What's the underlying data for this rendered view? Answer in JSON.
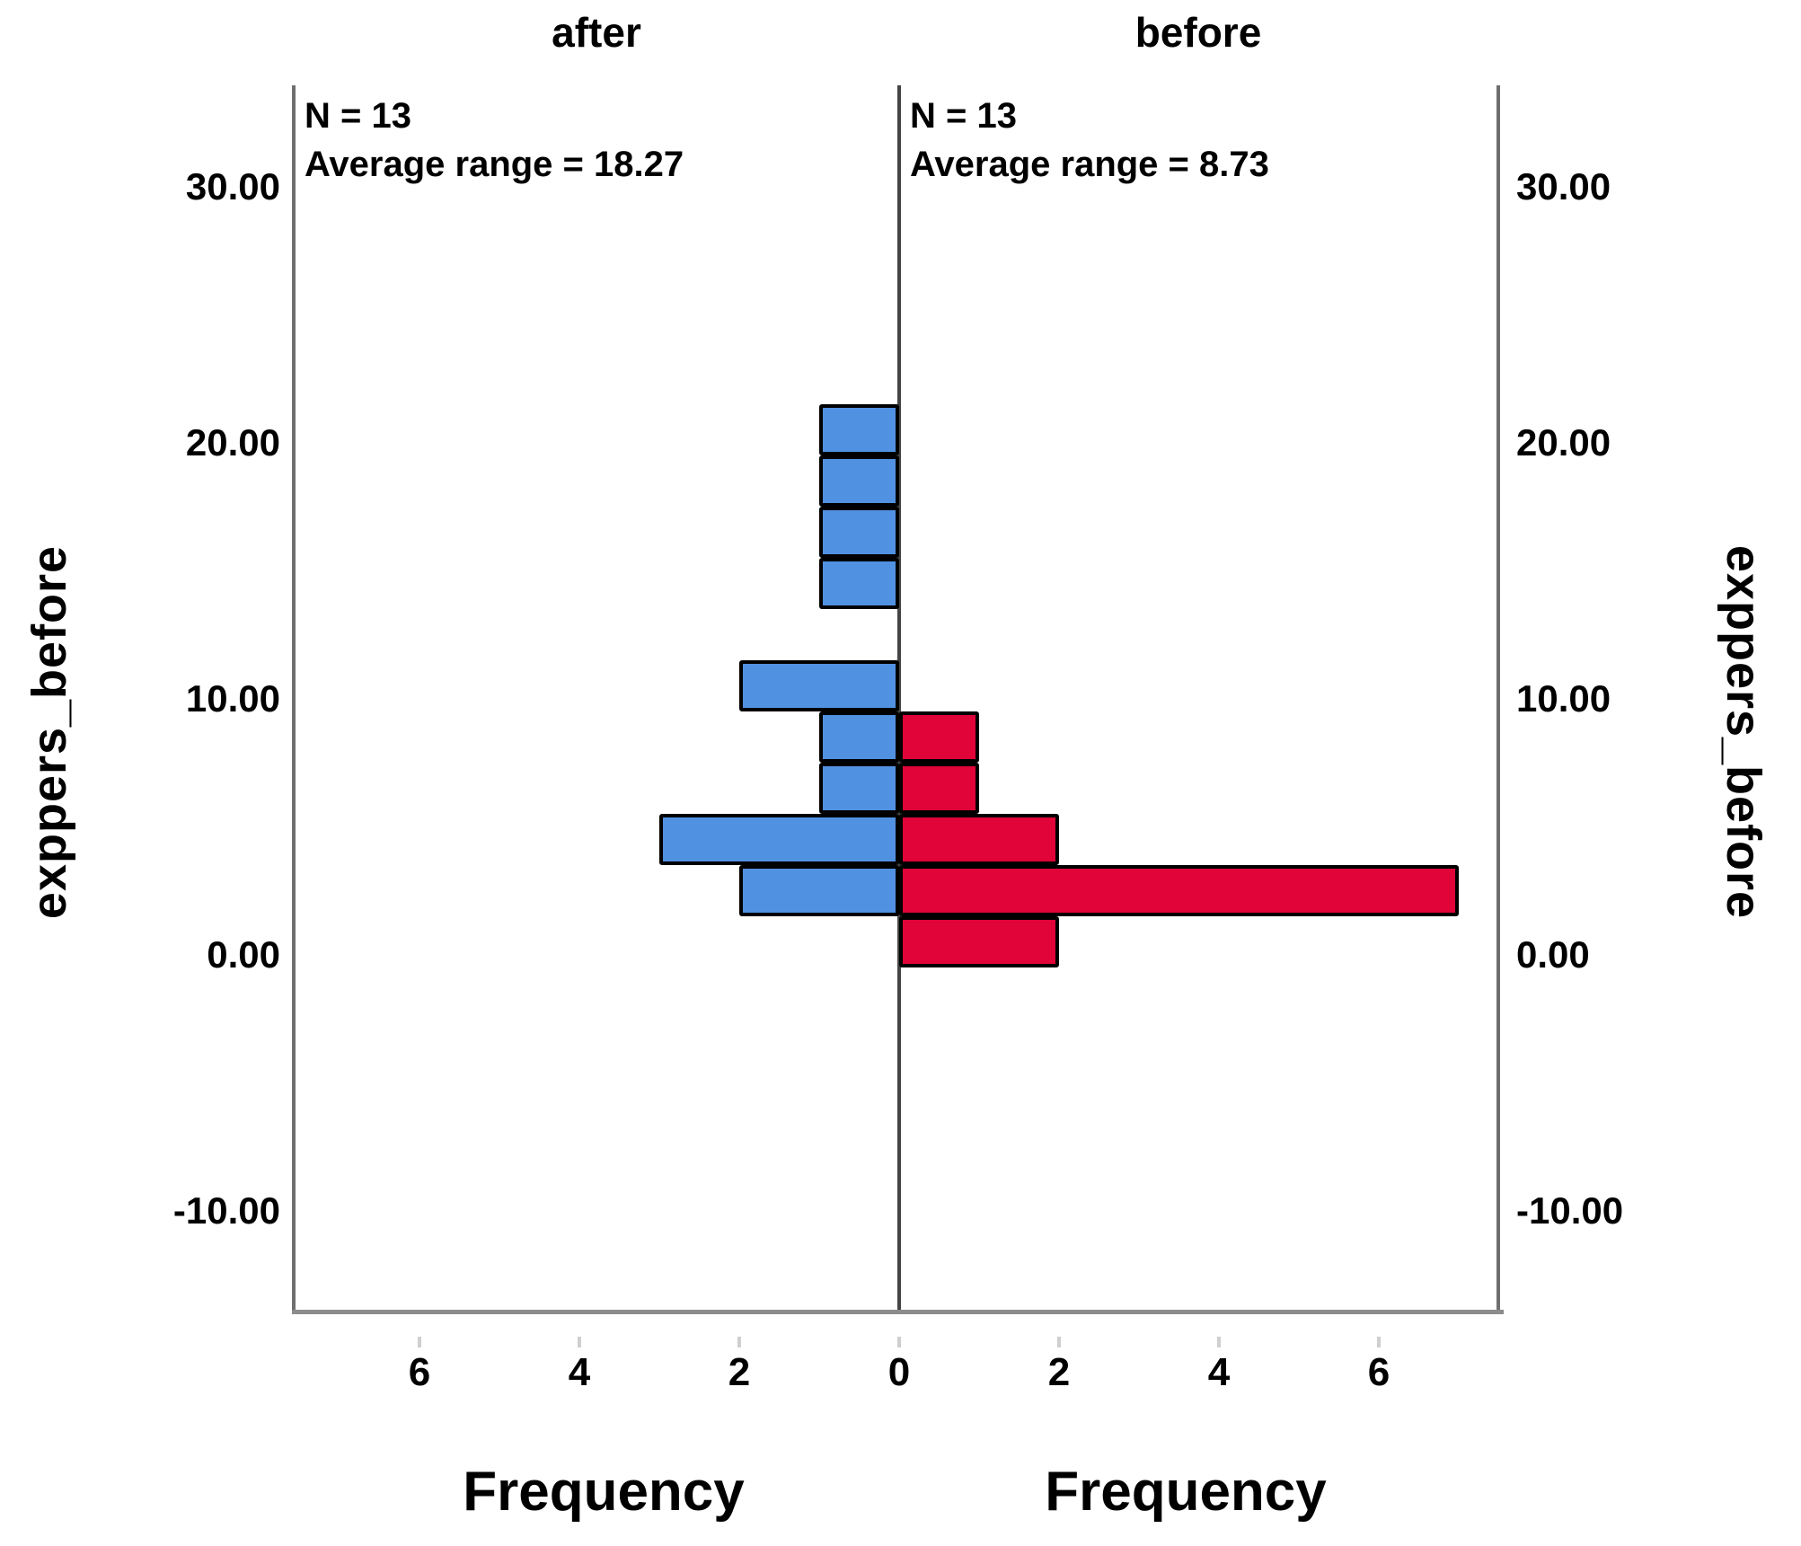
{
  "chart_data": {
    "type": "bar",
    "subtype": "back-to-back mirrored histogram",
    "orientation": "horizontal",
    "y_axis": {
      "label": "exppers_before",
      "ticks": [
        {
          "value": 30,
          "label": "30.00"
        },
        {
          "value": 20,
          "label": "20.00"
        },
        {
          "value": 10,
          "label": "10.00"
        },
        {
          "value": 0,
          "label": "0.00"
        },
        {
          "value": -10,
          "label": "-10.00"
        }
      ],
      "range": [
        -14,
        34
      ],
      "grid": false
    },
    "x_axis": {
      "label": "Frequency",
      "ticks": [
        {
          "value": -6,
          "label": "6"
        },
        {
          "value": -4,
          "label": "4"
        },
        {
          "value": -2,
          "label": "2"
        },
        {
          "value": 0,
          "label": "0"
        },
        {
          "value": 2,
          "label": "2"
        },
        {
          "value": 4,
          "label": "4"
        },
        {
          "value": 6,
          "label": "6"
        }
      ],
      "units_per_panel": 7.5
    },
    "bins": {
      "width": 2,
      "edges": [
        -0.5,
        1.5,
        3.5,
        5.5,
        7.5,
        9.5,
        11.5,
        13.5,
        15.5,
        17.5,
        19.5,
        21.5
      ]
    },
    "panels": [
      {
        "key": "after",
        "title": "after",
        "side": "left",
        "bar_color": "#5191E1",
        "stats": {
          "n": "N = 13",
          "average_range": "Average range = 18.27"
        },
        "xlabel": "Frequency",
        "counts": [
          0,
          2,
          3,
          1,
          1,
          2,
          0,
          1,
          1,
          1,
          1
        ]
      },
      {
        "key": "before",
        "title": "before",
        "side": "right",
        "bar_color": "#E00438",
        "stats": {
          "n": "N = 13",
          "average_range": "Average range = 8.73"
        },
        "xlabel": "Frequency",
        "counts": [
          2,
          7,
          2,
          1,
          1,
          0,
          0,
          0,
          0,
          0,
          0
        ]
      }
    ],
    "style": {
      "bar_border_color": "#000000",
      "outer_axis_color": "#6f6f6f",
      "center_axis_color": "#454545",
      "baseline_color": "#8c8c8c",
      "text_color": "#000000",
      "background": "#ffffff"
    }
  }
}
